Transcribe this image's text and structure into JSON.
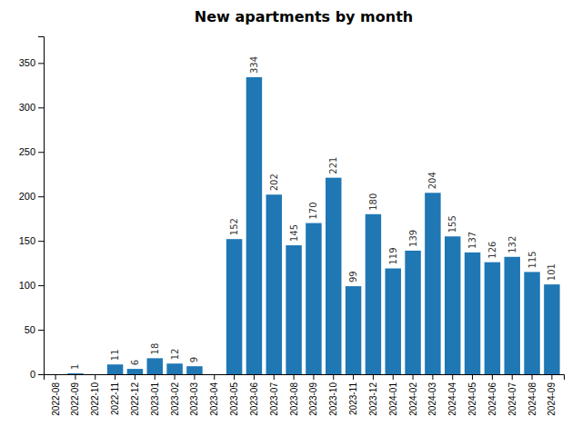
{
  "chart_data": {
    "type": "bar",
    "title": "New apartments by month",
    "categories": [
      "2022-08",
      "2022-09",
      "2022-10",
      "2022-11",
      "2022-12",
      "2023-01",
      "2023-02",
      "2023-03",
      "2023-04",
      "2023-05",
      "2023-06",
      "2023-07",
      "2023-08",
      "2023-09",
      "2023-10",
      "2023-11",
      "2023-12",
      "2024-01",
      "2024-02",
      "2024-03",
      "2024-04",
      "2024-05",
      "2024-06",
      "2024-07",
      "2024-08",
      "2024-09"
    ],
    "values": [
      0,
      1,
      0,
      11,
      6,
      18,
      12,
      9,
      0,
      152,
      334,
      202,
      145,
      170,
      221,
      99,
      180,
      119,
      139,
      204,
      155,
      137,
      126,
      132,
      115,
      101
    ],
    "value_labels": [
      null,
      "1",
      null,
      "11",
      "6",
      "18",
      "12",
      "9",
      null,
      "152",
      "334",
      "202",
      "145",
      "170",
      "221",
      "99",
      "180",
      "119",
      "139",
      "204",
      "155",
      "137",
      "126",
      "132",
      "115",
      "101"
    ],
    "color": "#1f77b4",
    "ylim": [
      0,
      380
    ],
    "yticks": [
      0,
      50,
      100,
      150,
      200,
      250,
      300,
      350
    ],
    "data_labels": true,
    "grid": false
  }
}
